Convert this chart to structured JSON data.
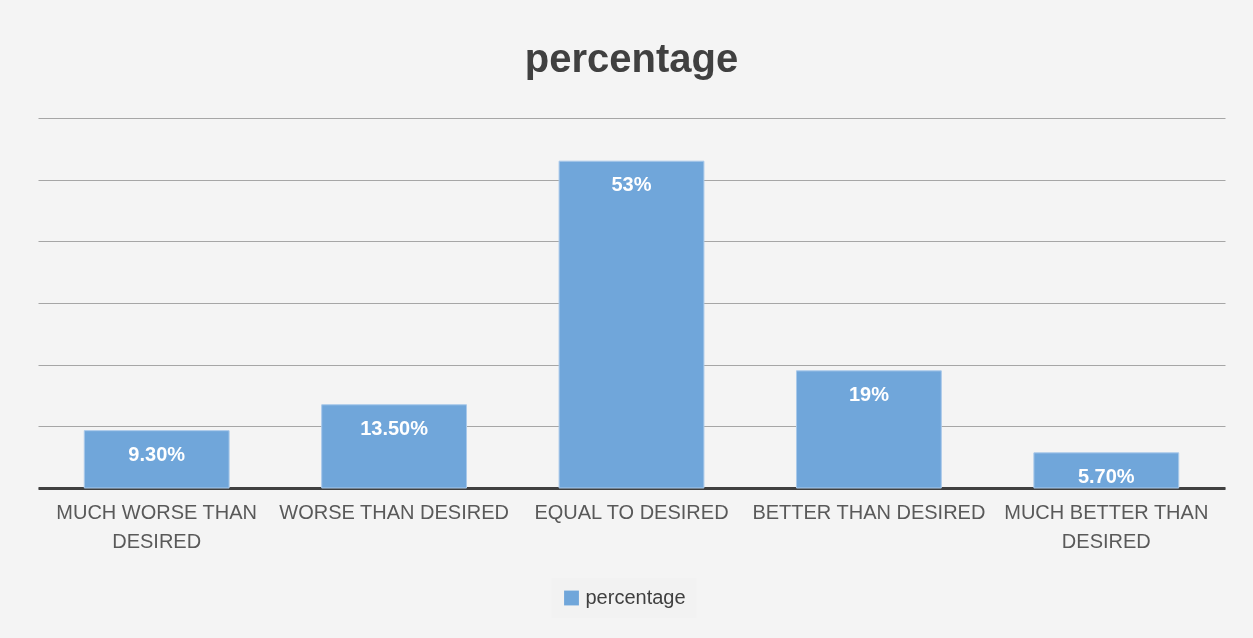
{
  "chart_data": {
    "type": "bar",
    "title": "percentage",
    "categories": [
      "MUCH WORSE THAN DESIRED",
      "WORSE THAN DESIRED",
      "EQUAL TO DESIRED",
      "BETTER THAN DESIRED",
      "MUCH BETTER THAN DESIRED"
    ],
    "series": [
      {
        "name": "percentage",
        "color": "#70a6da",
        "values": [
          9.3,
          13.5,
          53,
          19,
          5.7
        ],
        "value_labels": [
          "9.30%",
          "13.50%",
          "53%",
          "19%",
          "5.70%"
        ]
      }
    ],
    "ylim": [
      0,
      60
    ],
    "yticks": [
      {
        "value": 0,
        "label": null
      },
      {
        "value": 10,
        "label": null
      },
      {
        "value": 20,
        "label": null
      },
      {
        "value": 30,
        "label": null
      },
      {
        "value": 40,
        "label": null
      },
      {
        "value": 50,
        "label": null
      },
      {
        "value": 60,
        "label": null
      }
    ],
    "grid": "y",
    "legend": "bottom",
    "tick_labels": "x"
  }
}
